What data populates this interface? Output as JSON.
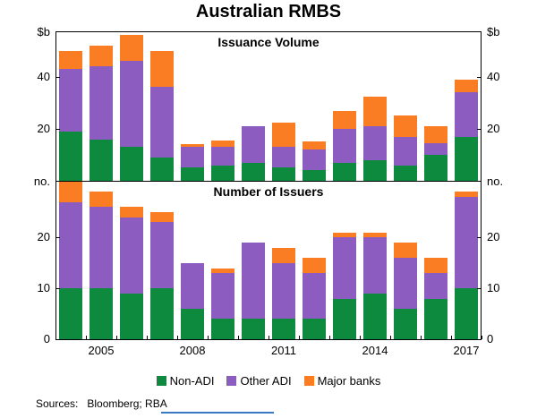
{
  "title": "Australian RMBS",
  "sources": "Sources:   Bloomberg; RBA",
  "decoration": {
    "color": "#3b78c3"
  },
  "legend": [
    {
      "label": "Non-ADI",
      "color": "#0d8a3e"
    },
    {
      "label": "Other ADI",
      "color": "#8c5cc0"
    },
    {
      "label": "Major banks",
      "color": "#fb7d23"
    }
  ],
  "chart_data": [
    {
      "type": "bar",
      "stacked": true,
      "panel_title": "Issuance Volume",
      "unit": "$b",
      "ylim": [
        0,
        57.5
      ],
      "yticks": [
        20,
        40
      ],
      "grid": false,
      "legend_position": "bottom",
      "x": [
        2004,
        2005,
        2006,
        2007,
        2008,
        2009,
        2010,
        2011,
        2012,
        2013,
        2014,
        2015,
        2016,
        2017
      ],
      "xtick_labels": [
        "2005",
        "2008",
        "2011",
        "2014",
        "2017"
      ],
      "series": [
        {
          "name": "Non-ADI",
          "values": [
            19,
            16,
            13,
            9,
            5,
            6,
            7,
            5,
            4,
            7,
            8,
            6,
            10,
            17
          ]
        },
        {
          "name": "Other ADI",
          "values": [
            24,
            28,
            33,
            27,
            8,
            7,
            14,
            8,
            8,
            13,
            13,
            11,
            4.5,
            17
          ]
        },
        {
          "name": "Major banks",
          "values": [
            7,
            8,
            10,
            14,
            1,
            2.5,
            0,
            9.5,
            3,
            7,
            11.5,
            8,
            6.5,
            5
          ]
        }
      ]
    },
    {
      "type": "bar",
      "stacked": true,
      "panel_title": "Number of Issuers",
      "unit": "no.",
      "ylim": [
        0,
        31
      ],
      "yticks": [
        0,
        10,
        20
      ],
      "grid": false,
      "legend_position": "bottom",
      "x": [
        2004,
        2005,
        2006,
        2007,
        2008,
        2009,
        2010,
        2011,
        2012,
        2013,
        2014,
        2015,
        2016,
        2017
      ],
      "xtick_labels": [
        "2005",
        "2008",
        "2011",
        "2014",
        "2017"
      ],
      "series": [
        {
          "name": "Non-ADI",
          "values": [
            10,
            10,
            9,
            10,
            6,
            4,
            4,
            4,
            4,
            8,
            9,
            6,
            8,
            10
          ]
        },
        {
          "name": "Other ADI",
          "values": [
            17,
            16,
            15,
            13,
            9,
            9,
            15,
            11,
            9,
            12,
            11,
            10,
            5,
            18
          ]
        },
        {
          "name": "Major banks",
          "values": [
            4,
            3,
            2,
            2,
            0,
            1,
            0,
            3,
            3,
            1,
            1,
            3,
            3,
            1
          ]
        }
      ]
    }
  ]
}
